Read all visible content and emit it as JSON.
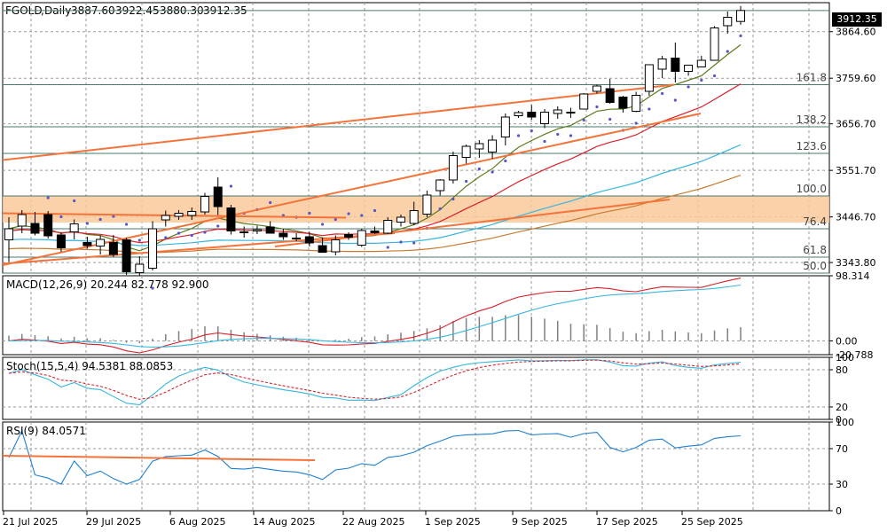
{
  "chart_data": [
    {
      "type": "candlestick",
      "panel": "price",
      "symbol": "FGOLD",
      "timeframe": "Daily",
      "ohlc_header": {
        "open": "3887.60",
        "high": "3922.45",
        "low": "3880.30",
        "close": "3912.35"
      },
      "last_price_label": "3912.35",
      "y_axis_labels": [
        "3864.60",
        "3759.60",
        "3656.70",
        "3551.70",
        "3446.70",
        "3343.80"
      ],
      "ylim": [
        3320,
        3930
      ],
      "x_axis_labels": [
        "21 Jul 2025",
        "29 Jul 2025",
        "6 Aug 2025",
        "14 Aug 2025",
        "22 Aug 2025",
        "1 Sep 2025",
        "9 Sep 2025",
        "17 Sep 2025",
        "25 Sep 2025"
      ],
      "fibonacci_levels": [
        {
          "label": "161.8",
          "price": 3745
        },
        {
          "label": "138.2",
          "price": 3650
        },
        {
          "label": "123.6",
          "price": 3590
        },
        {
          "label": "100.0",
          "price": 3494
        },
        {
          "label": "76.4",
          "price": 3420
        },
        {
          "label": "61.8",
          "price": 3356
        },
        {
          "label": "50.0",
          "price": 3320
        }
      ],
      "fib_zone": {
        "from": 3434,
        "to": 3494
      },
      "candles": [
        {
          "o": 3395,
          "h": 3446,
          "l": 3345,
          "c": 3420
        },
        {
          "o": 3426,
          "h": 3462,
          "l": 3410,
          "c": 3452
        },
        {
          "o": 3432,
          "h": 3458,
          "l": 3405,
          "c": 3410
        },
        {
          "o": 3452,
          "h": 3460,
          "l": 3398,
          "c": 3404
        },
        {
          "o": 3406,
          "h": 3411,
          "l": 3368,
          "c": 3377
        },
        {
          "o": 3413,
          "h": 3441,
          "l": 3396,
          "c": 3431
        },
        {
          "o": 3389,
          "h": 3402,
          "l": 3375,
          "c": 3382
        },
        {
          "o": 3381,
          "h": 3405,
          "l": 3362,
          "c": 3396
        },
        {
          "o": 3389,
          "h": 3406,
          "l": 3356,
          "c": 3362
        },
        {
          "o": 3395,
          "h": 3400,
          "l": 3316,
          "c": 3323
        },
        {
          "o": 3321,
          "h": 3358,
          "l": 3313,
          "c": 3340
        },
        {
          "o": 3331,
          "h": 3437,
          "l": 3326,
          "c": 3420
        },
        {
          "o": 3440,
          "h": 3461,
          "l": 3425,
          "c": 3450
        },
        {
          "o": 3448,
          "h": 3462,
          "l": 3440,
          "c": 3455
        },
        {
          "o": 3450,
          "h": 3468,
          "l": 3440,
          "c": 3459
        },
        {
          "o": 3458,
          "h": 3501,
          "l": 3452,
          "c": 3493
        },
        {
          "o": 3514,
          "h": 3536,
          "l": 3451,
          "c": 3470
        },
        {
          "o": 3467,
          "h": 3474,
          "l": 3407,
          "c": 3415
        },
        {
          "o": 3413,
          "h": 3425,
          "l": 3400,
          "c": 3411
        },
        {
          "o": 3415,
          "h": 3427,
          "l": 3408,
          "c": 3418
        },
        {
          "o": 3424,
          "h": 3437,
          "l": 3409,
          "c": 3410
        },
        {
          "o": 3410,
          "h": 3420,
          "l": 3395,
          "c": 3402
        },
        {
          "o": 3397,
          "h": 3410,
          "l": 3392,
          "c": 3399
        },
        {
          "o": 3402,
          "h": 3413,
          "l": 3380,
          "c": 3388
        },
        {
          "o": 3382,
          "h": 3400,
          "l": 3367,
          "c": 3367
        },
        {
          "o": 3368,
          "h": 3405,
          "l": 3360,
          "c": 3395
        },
        {
          "o": 3407,
          "h": 3412,
          "l": 3395,
          "c": 3401
        },
        {
          "o": 3383,
          "h": 3420,
          "l": 3379,
          "c": 3416
        },
        {
          "o": 3415,
          "h": 3425,
          "l": 3408,
          "c": 3411
        },
        {
          "o": 3410,
          "h": 3446,
          "l": 3408,
          "c": 3439
        },
        {
          "o": 3435,
          "h": 3452,
          "l": 3425,
          "c": 3446
        },
        {
          "o": 3432,
          "h": 3481,
          "l": 3428,
          "c": 3461
        },
        {
          "o": 3453,
          "h": 3506,
          "l": 3446,
          "c": 3496
        },
        {
          "o": 3506,
          "h": 3532,
          "l": 3495,
          "c": 3530
        },
        {
          "o": 3530,
          "h": 3594,
          "l": 3522,
          "c": 3585
        },
        {
          "o": 3581,
          "h": 3610,
          "l": 3567,
          "c": 3606
        },
        {
          "o": 3600,
          "h": 3620,
          "l": 3580,
          "c": 3612
        },
        {
          "o": 3593,
          "h": 3631,
          "l": 3578,
          "c": 3620
        },
        {
          "o": 3627,
          "h": 3680,
          "l": 3608,
          "c": 3672
        },
        {
          "o": 3675,
          "h": 3686,
          "l": 3670,
          "c": 3682
        },
        {
          "o": 3683,
          "h": 3699,
          "l": 3666,
          "c": 3672
        },
        {
          "o": 3657,
          "h": 3690,
          "l": 3647,
          "c": 3683
        },
        {
          "o": 3680,
          "h": 3696,
          "l": 3668,
          "c": 3688
        },
        {
          "o": 3683,
          "h": 3693,
          "l": 3670,
          "c": 3681
        },
        {
          "o": 3690,
          "h": 3726,
          "l": 3690,
          "c": 3724
        },
        {
          "o": 3730,
          "h": 3745,
          "l": 3725,
          "c": 3742
        },
        {
          "o": 3736,
          "h": 3758,
          "l": 3702,
          "c": 3705
        },
        {
          "o": 3717,
          "h": 3720,
          "l": 3682,
          "c": 3692
        },
        {
          "o": 3685,
          "h": 3729,
          "l": 3683,
          "c": 3721
        },
        {
          "o": 3730,
          "h": 3790,
          "l": 3720,
          "c": 3790
        },
        {
          "o": 3780,
          "h": 3810,
          "l": 3760,
          "c": 3803
        },
        {
          "o": 3805,
          "h": 3840,
          "l": 3750,
          "c": 3775
        },
        {
          "o": 3775,
          "h": 3790,
          "l": 3765,
          "c": 3789
        },
        {
          "o": 3785,
          "h": 3810,
          "l": 3785,
          "c": 3800
        },
        {
          "o": 3800,
          "h": 3877,
          "l": 3800,
          "c": 3873
        },
        {
          "o": 3878,
          "h": 3910,
          "l": 3860,
          "c": 3897
        },
        {
          "o": 3887.6,
          "h": 3922.45,
          "l": 3880.3,
          "c": 3912.35
        }
      ],
      "colors": {
        "bull_body": "#ffffff",
        "bear_body": "#000000",
        "fib_line": "#4a7a6f",
        "fib_zone": "#f9c99a",
        "trendline": "#f4733a",
        "ma_fast": "#5c7a1a",
        "ma_mid": "#d9202a",
        "ma_slow": "#36b6de",
        "ma_slowest": "#c97a2e",
        "psar": "#5555cc"
      }
    },
    {
      "type": "line",
      "panel": "macd",
      "label": "MACD(12,26,9) 20.244 82.778 92.900",
      "y_axis_labels": [
        "98.314",
        "0.00",
        "-20.788"
      ],
      "ylim": [
        -20.788,
        98.314
      ],
      "colors": {
        "macd": "#d9202a",
        "signal": "#36b6de",
        "histogram": "#808080"
      }
    },
    {
      "type": "line",
      "panel": "stochastic",
      "label": "Stoch(15,5,4) 94.5381 88.0853",
      "y_axis_labels": [
        "100",
        "80",
        "20",
        "0"
      ],
      "ylim": [
        0,
        100
      ],
      "colors": {
        "k": "#36b6de",
        "d": "#d9202a"
      }
    },
    {
      "type": "line",
      "panel": "rsi",
      "label": "RSI(9) 84.0571",
      "y_axis_labels": [
        "100",
        "70",
        "30",
        "0"
      ],
      "ylim": [
        0,
        100
      ],
      "colors": {
        "rsi": "#1e7fd0",
        "trendline": "#f4733a"
      }
    }
  ]
}
